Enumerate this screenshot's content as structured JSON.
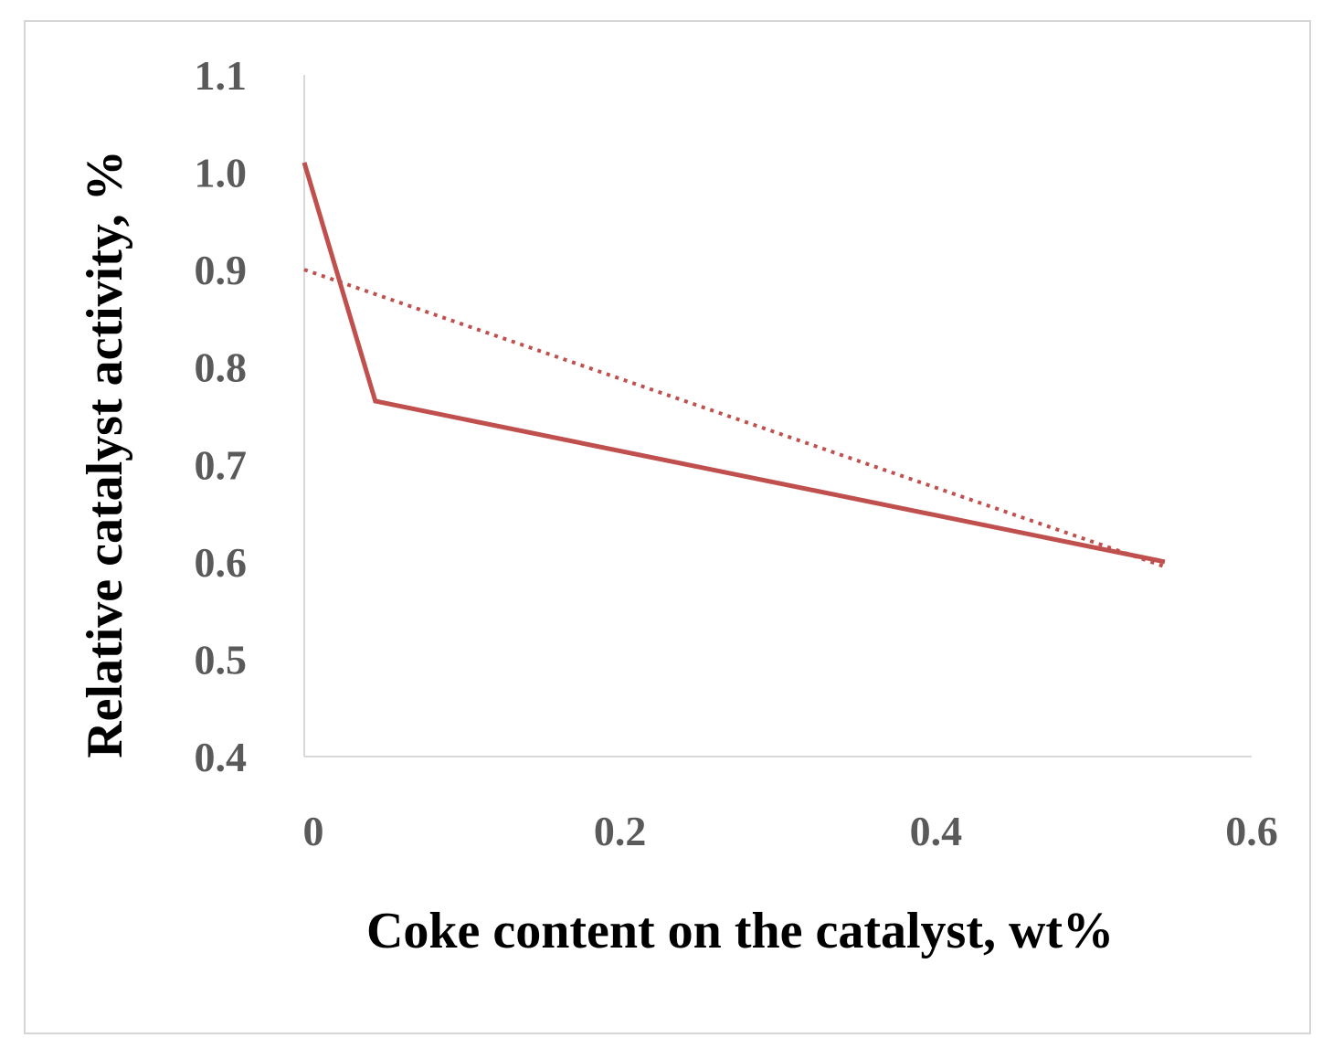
{
  "chart_data": {
    "type": "line",
    "title": "",
    "xlabel": "Coke content on the catalyst, wt%",
    "ylabel": "Relative catalyst activity, %",
    "xlim": [
      0,
      0.6
    ],
    "ylim": [
      0.4,
      1.1
    ],
    "x_ticks": [
      "0",
      "0.2",
      "0.4",
      "0.6"
    ],
    "y_ticks": [
      "0.4",
      "0.5",
      "0.6",
      "0.7",
      "0.8",
      "0.9",
      "1.0",
      "1.1"
    ],
    "grid": false,
    "series": [
      {
        "style": "solid",
        "color": "#c0504d",
        "points": [
          [
            0,
            1.01
          ],
          [
            0.045,
            0.765
          ],
          [
            0.545,
            0.6
          ]
        ]
      },
      {
        "style": "dotted",
        "color": "#c0504d",
        "points": [
          [
            0,
            0.9
          ],
          [
            0.545,
            0.595
          ]
        ]
      }
    ]
  }
}
